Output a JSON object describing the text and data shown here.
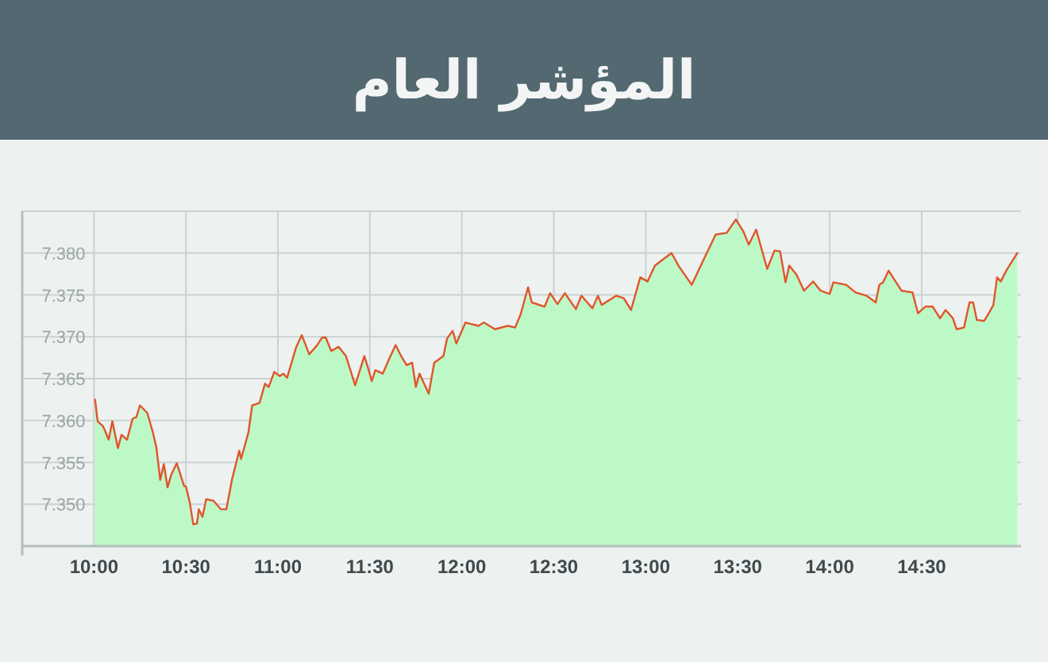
{
  "chart_data": {
    "type": "area",
    "title": "المؤشر العام",
    "x": [
      10.006,
      10.02,
      10.05,
      10.08,
      10.1,
      10.13,
      10.15,
      10.18,
      10.21,
      10.23,
      10.25,
      10.29,
      10.32,
      10.34,
      10.36,
      10.38,
      10.4,
      10.42,
      10.45,
      10.49,
      10.5,
      10.52,
      10.54,
      10.56,
      10.57,
      10.59,
      10.61,
      10.65,
      10.69,
      10.72,
      10.75,
      10.79,
      10.8,
      10.84,
      10.86,
      10.9,
      10.93,
      10.95,
      10.98,
      11.01,
      11.03,
      11.05,
      11.1,
      11.13,
      11.17,
      11.21,
      11.24,
      11.26,
      11.29,
      11.33,
      11.37,
      11.42,
      11.47,
      11.49,
      11.51,
      11.53,
      11.57,
      11.61,
      11.64,
      11.67,
      11.7,
      11.73,
      11.75,
      11.77,
      11.82,
      11.85,
      11.9,
      11.92,
      11.95,
      11.97,
      12.02,
      12.09,
      12.12,
      12.18,
      12.25,
      12.29,
      12.32,
      12.36,
      12.38,
      12.45,
      12.48,
      12.52,
      12.56,
      12.62,
      12.65,
      12.71,
      12.74,
      12.76,
      12.84,
      12.88,
      12.92,
      12.97,
      13.01,
      13.05,
      13.11,
      13.14,
      13.18,
      13.25,
      13.31,
      13.38,
      13.44,
      13.49,
      13.53,
      13.56,
      13.6,
      13.66,
      13.7,
      13.73,
      13.76,
      13.78,
      13.82,
      13.86,
      13.91,
      13.95,
      14,
      14.02,
      14.09,
      14.14,
      14.2,
      14.25,
      14.27,
      14.29,
      14.32,
      14.39,
      14.45,
      14.48,
      14.52,
      14.56,
      14.6,
      14.63,
      14.67,
      14.69,
      14.73,
      14.76,
      14.78,
      14.8,
      14.84,
      14.87,
      14.89,
      14.91,
      14.93,
      14.96,
      15.02
    ],
    "series": [
      {
        "color": "#e0552b",
        "values": [
          7362.5,
          7359.9,
          7359.3,
          7357.7,
          7359.9,
          7356.7,
          7358.3,
          7357.7,
          7360.2,
          7360.4,
          7361.8,
          7360.9,
          7358.6,
          7356.7,
          7352.9,
          7354.8,
          7352,
          7353.5,
          7354.9,
          7352.2,
          7352.1,
          7350.3,
          7347.6,
          7347.7,
          7349.4,
          7348.5,
          7350.6,
          7350.4,
          7349.4,
          7349.4,
          7352.9,
          7356.4,
          7355.4,
          7358.6,
          7361.8,
          7362.1,
          7364.4,
          7364,
          7365.8,
          7365.3,
          7365.6,
          7365.1,
          7368.8,
          7370.2,
          7367.9,
          7368.9,
          7369.9,
          7369.9,
          7368.3,
          7368.8,
          7367.7,
          7364.2,
          7367.7,
          7366.3,
          7364.7,
          7366,
          7365.6,
          7367.6,
          7369,
          7367.7,
          7366.6,
          7366.9,
          7364,
          7365.6,
          7363.2,
          7366.9,
          7367.7,
          7369.8,
          7370.7,
          7369.2,
          7371.7,
          7371.3,
          7371.7,
          7370.9,
          7371.3,
          7371.1,
          7372.7,
          7375.9,
          7374.1,
          7373.6,
          7375.2,
          7373.9,
          7375.2,
          7373.3,
          7374.9,
          7373.4,
          7374.9,
          7373.8,
          7374.9,
          7374.6,
          7373.2,
          7377.1,
          7376.6,
          7378.5,
          7379.5,
          7380,
          7378.4,
          7376.2,
          7379,
          7382.2,
          7382.4,
          7384,
          7382.6,
          7381,
          7382.8,
          7378.1,
          7380.3,
          7380.2,
          7376.5,
          7378.5,
          7377.4,
          7375.5,
          7376.6,
          7375.5,
          7375.1,
          7376.5,
          7376.2,
          7375.3,
          7374.9,
          7374.1,
          7376.2,
          7376.5,
          7377.9,
          7375.5,
          7375.3,
          7372.8,
          7373.6,
          7373.6,
          7372.2,
          7373.2,
          7372.2,
          7370.9,
          7371.1,
          7374.1,
          7374.1,
          7372,
          7371.9,
          7373,
          7373.8,
          7377.1,
          7376.6,
          7377.9,
          7380
        ]
      }
    ],
    "xlim": [
      9.61,
      15.04
    ],
    "xticks": [
      {
        "value": 10,
        "label": "10:00"
      },
      {
        "value": 10.5,
        "label": "10:30"
      },
      {
        "value": 11,
        "label": "11:00"
      },
      {
        "value": 11.5,
        "label": "11:30"
      },
      {
        "value": 12,
        "label": "12:00"
      },
      {
        "value": 12.5,
        "label": "12:30"
      },
      {
        "value": 13,
        "label": "13:00"
      },
      {
        "value": 13.5,
        "label": "13:30"
      },
      {
        "value": 14,
        "label": "14:00"
      },
      {
        "value": 14.5,
        "label": "14:30"
      }
    ],
    "ylim": [
      7345,
      7385
    ],
    "yticks": [
      {
        "value": 7350,
        "label": "7.350"
      },
      {
        "value": 7355,
        "label": "7.355"
      },
      {
        "value": 7360,
        "label": "7.360"
      },
      {
        "value": 7365,
        "label": "7.365"
      },
      {
        "value": 7370,
        "label": "7.370"
      },
      {
        "value": 7375,
        "label": "7.375"
      },
      {
        "value": 7380,
        "label": "7.380"
      },
      {
        "value": 7385,
        "label": null
      }
    ],
    "grid": true
  }
}
